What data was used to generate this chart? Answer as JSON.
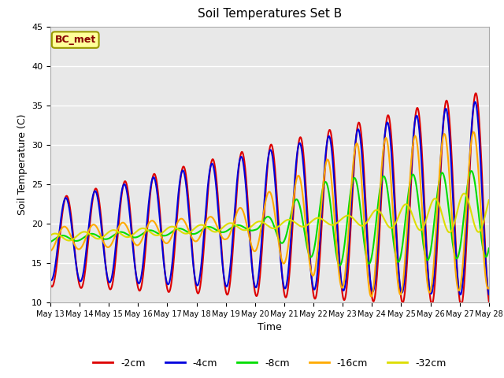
{
  "title": "Soil Temperatures Set B",
  "xlabel": "Time",
  "ylabel": "Soil Temperature (C)",
  "annotation": "BC_met",
  "ylim": [
    10,
    45
  ],
  "xlim": [
    0,
    15
  ],
  "xtick_positions": [
    0,
    1,
    2,
    3,
    4,
    5,
    6,
    7,
    8,
    9,
    10,
    11,
    12,
    13,
    14,
    15
  ],
  "xtick_labels": [
    "May 13",
    "May 14",
    "May 15",
    "May 16",
    "May 17",
    "May 18",
    "May 19",
    "May 20",
    "May 21",
    "May 22",
    "May 23",
    "May 24",
    "May 25",
    "May 26",
    "May 27",
    "May 28"
  ],
  "ytick_positions": [
    10,
    15,
    20,
    25,
    30,
    35,
    40,
    45
  ],
  "series": {
    "-2cm": {
      "color": "#dd0000",
      "lw": 1.5
    },
    "-4cm": {
      "color": "#0000dd",
      "lw": 1.5
    },
    "-8cm": {
      "color": "#00dd00",
      "lw": 1.5
    },
    "-16cm": {
      "color": "#ffaa00",
      "lw": 1.5
    },
    "-32cm": {
      "color": "#dddd00",
      "lw": 1.5
    }
  },
  "legend_colors": [
    "#dd0000",
    "#0000dd",
    "#00dd00",
    "#ffaa00",
    "#dddd00"
  ],
  "legend_labels": [
    "-2cm",
    "-4cm",
    "-8cm",
    "-16cm",
    "-32cm"
  ],
  "grid_color": "#ffffff",
  "bg_color": "#e8e8e8",
  "annotation_facecolor": "#ffff99",
  "annotation_edgecolor": "#999900",
  "annotation_textcolor": "#880000"
}
